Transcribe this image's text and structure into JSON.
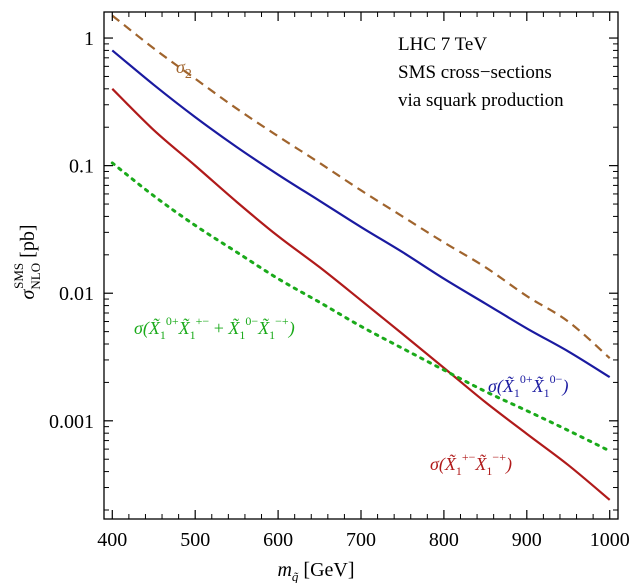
{
  "chart_data": {
    "type": "line",
    "title": "",
    "xlabel": "m_q̃ [GeV]",
    "ylabel": "σ_NLO^SMS [pb]",
    "xlim": [
      390,
      1010
    ],
    "ylim": [
      0.00017,
      1.6
    ],
    "yscale": "log",
    "grid": false,
    "x_ticks": [
      400,
      500,
      600,
      700,
      800,
      900,
      1000
    ],
    "x_tick_labels": [
      "400",
      "500",
      "600",
      "700",
      "800",
      "900",
      "1000"
    ],
    "y_ticks": [
      0.001,
      0.01,
      0.1,
      1
    ],
    "y_tick_labels": [
      "0.001",
      "0.01",
      "0.1",
      "1"
    ],
    "annotation": [
      "LHC 7 TeV",
      "SMS cross−sections",
      "via squark production"
    ],
    "series": [
      {
        "name": "σ2",
        "color": "#a0642d",
        "style": "dashed",
        "x": [
          400,
          450,
          500,
          550,
          600,
          650,
          700,
          750,
          800,
          850,
          900,
          950,
          1000
        ],
        "y": [
          1.5,
          0.83,
          0.48,
          0.28,
          0.17,
          0.105,
          0.064,
          0.04,
          0.025,
          0.016,
          0.0095,
          0.006,
          0.0031
        ]
      },
      {
        "name": "σ(X̃1^0+ X̃1^0−)",
        "color": "#1a1aa0",
        "style": "solid",
        "x": [
          400,
          450,
          500,
          550,
          600,
          650,
          700,
          750,
          800,
          850,
          900,
          950,
          1000
        ],
        "y": [
          0.8,
          0.43,
          0.24,
          0.14,
          0.085,
          0.053,
          0.033,
          0.021,
          0.013,
          0.0083,
          0.0053,
          0.0035,
          0.0022
        ]
      },
      {
        "name": "σ(X̃1^+− X̃1^−+)",
        "color": "#b01a1a",
        "style": "solid",
        "x": [
          400,
          450,
          500,
          550,
          600,
          650,
          700,
          750,
          800,
          850,
          900,
          950,
          1000
        ],
        "y": [
          0.4,
          0.19,
          0.1,
          0.052,
          0.028,
          0.016,
          0.0088,
          0.0048,
          0.0026,
          0.0014,
          0.00079,
          0.00045,
          0.00024
        ]
      },
      {
        "name": "σ(X̃1^0+ X̃1^+− + X̃1^0− X̃1^−+)",
        "color": "#1aaa1a",
        "style": "dotted",
        "x": [
          400,
          450,
          500,
          550,
          600,
          650,
          700,
          750,
          800,
          850,
          900,
          950,
          1000
        ],
        "y": [
          0.105,
          0.058,
          0.034,
          0.021,
          0.013,
          0.0085,
          0.0055,
          0.0037,
          0.0025,
          0.0017,
          0.0012,
          0.00084,
          0.00058
        ]
      }
    ]
  }
}
